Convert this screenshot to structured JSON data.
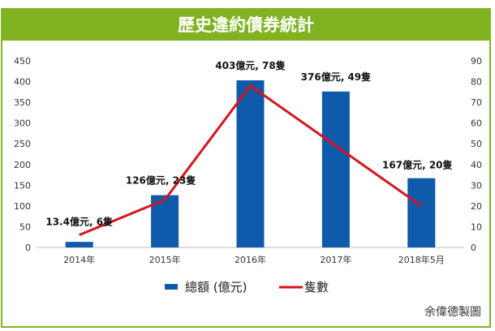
{
  "chart_data": {
    "type": "bar+line",
    "title": "歷史違約債券統計",
    "categories": [
      "2014年",
      "2015年",
      "2016年",
      "2017年",
      "2018年5月"
    ],
    "series": [
      {
        "name": "總額 (億元)",
        "type": "bar",
        "axis": "left",
        "color": "#0f5aaa",
        "values": [
          13.4,
          126,
          403,
          376,
          167
        ]
      },
      {
        "name": "隻數",
        "type": "line",
        "axis": "right",
        "color": "#d7141e",
        "values": [
          6,
          23,
          78,
          49,
          20
        ]
      }
    ],
    "data_labels": [
      "13.4億元, 6隻",
      "126億元, 23隻",
      "403億元, 78隻",
      "376億元, 49隻",
      "167億元, 20隻"
    ],
    "left_axis": {
      "min": 0,
      "max": 450,
      "step": 50
    },
    "right_axis": {
      "min": 0,
      "max": 90,
      "step": 10
    },
    "grid": false,
    "legend_position": "bottom"
  },
  "credit": "余偉德製圖"
}
